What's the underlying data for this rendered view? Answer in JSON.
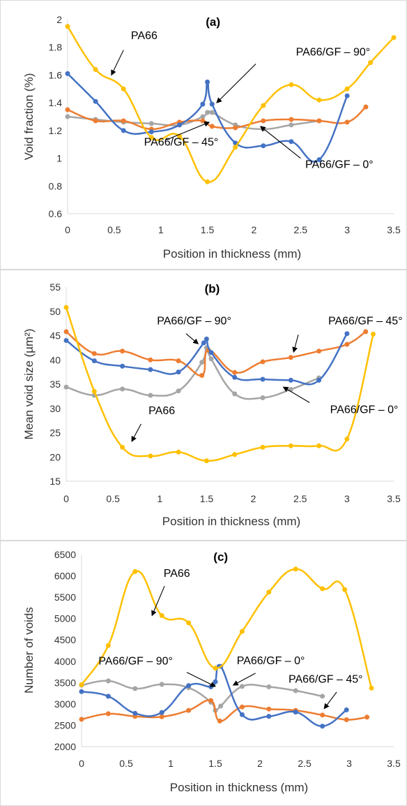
{
  "colors": {
    "PA66": "#ffc000",
    "PA66/GF – 90°": "#4472c4",
    "PA66/GF – 45°": "#ed7d31",
    "PA66/GF – 0°": "#a5a5a5"
  },
  "chart_data": [
    {
      "type": "line",
      "panel_label": "(a)",
      "xlabel": "Position in thickness (mm)",
      "ylabel": "Void fraction (%)",
      "xlim": [
        0,
        3.5
      ],
      "ylim": [
        0.6,
        2
      ],
      "xticks": [
        0,
        0.5,
        1,
        1.5,
        2,
        2.5,
        3,
        3.5
      ],
      "yticks": [
        0.6,
        0.8,
        1,
        1.2,
        1.4,
        1.6,
        1.8,
        2
      ],
      "xtick_labels": [
        "0",
        "0.5",
        "1",
        "1.5",
        "2",
        "2.5",
        "3",
        "3.5"
      ],
      "ytick_labels": [
        "0.6",
        "0.8",
        "1",
        "1.2",
        "1.4",
        "1.6",
        "1.8",
        "2"
      ],
      "grid": false,
      "series": [
        {
          "key": "PA66",
          "x": [
            0,
            0.3,
            0.6,
            0.9,
            1.2,
            1.5,
            1.8,
            2.1,
            2.4,
            2.7,
            3.0,
            3.25,
            3.5
          ],
          "y": [
            1.95,
            1.64,
            1.5,
            1.15,
            1.16,
            0.83,
            1.08,
            1.38,
            1.53,
            1.42,
            1.5,
            1.69,
            1.87
          ]
        },
        {
          "key": "PA66/GF – 90°",
          "x": [
            0,
            0.3,
            0.6,
            0.9,
            1.2,
            1.45,
            1.5,
            1.55,
            1.8,
            2.1,
            2.4,
            2.7,
            3.0
          ],
          "y": [
            1.61,
            1.41,
            1.2,
            1.19,
            1.24,
            1.39,
            1.55,
            1.39,
            1.11,
            1.09,
            1.12,
            0.99,
            1.45
          ]
        },
        {
          "key": "PA66/GF – 45°",
          "x": [
            0,
            0.3,
            0.6,
            0.9,
            1.2,
            1.45,
            1.55,
            1.8,
            2.1,
            2.4,
            2.7,
            3.0,
            3.2
          ],
          "y": [
            1.35,
            1.27,
            1.27,
            1.21,
            1.26,
            1.27,
            1.23,
            1.22,
            1.27,
            1.28,
            1.27,
            1.26,
            1.37
          ]
        },
        {
          "key": "PA66/GF – 0°",
          "x": [
            0,
            0.3,
            0.6,
            0.9,
            1.2,
            1.45,
            1.5,
            1.55,
            1.8,
            2.1,
            2.4,
            2.7
          ],
          "y": [
            1.3,
            1.28,
            1.26,
            1.25,
            1.24,
            1.3,
            1.33,
            1.33,
            1.24,
            1.21,
            1.24,
            1.27
          ]
        }
      ],
      "annotations": [
        {
          "text": "PA66",
          "tx": 0.68,
          "ty": 1.86,
          "ax1": 0.6,
          "ay1": 1.78,
          "ax2": 0.47,
          "ay2": 1.6
        },
        {
          "text": "PA66/GF – 90°",
          "tx": 2.45,
          "ty": 1.74,
          "ax1": 2.02,
          "ay1": 1.68,
          "ax2": 1.6,
          "ay2": 1.4
        },
        {
          "text": "PA66/GF – 45°",
          "tx": 0.82,
          "ty": 1.09,
          "ax1": 1.05,
          "ay1": 1.13,
          "ax2": 1.52,
          "ay2": 1.26
        },
        {
          "text": "PA66/GF – 0°",
          "tx": 2.55,
          "ty": 0.93,
          "ax1": 2.5,
          "ay1": 1.0,
          "ax2": 2.07,
          "ay2": 1.23
        }
      ]
    },
    {
      "type": "line",
      "panel_label": "(b)",
      "xlabel": "Position in thickness (mm)",
      "ylabel": "Mean void size (µm²)",
      "xlim": [
        0,
        3.5
      ],
      "ylim": [
        15,
        55
      ],
      "xticks": [
        0,
        0.5,
        1,
        1.5,
        2,
        2.5,
        3,
        3.5
      ],
      "yticks": [
        15,
        20,
        25,
        30,
        35,
        40,
        45,
        50,
        55
      ],
      "xtick_labels": [
        "0",
        "0.5",
        "1",
        "1.5",
        "2",
        "2.5",
        "3",
        "3.5"
      ],
      "ytick_labels": [
        "15",
        "20",
        "25",
        "30",
        "35",
        "40",
        "45",
        "50",
        "55"
      ],
      "grid": false,
      "series": [
        {
          "key": "PA66",
          "x": [
            0,
            0.3,
            0.6,
            0.9,
            1.2,
            1.5,
            1.8,
            2.1,
            2.4,
            2.7,
            3.0,
            3.28
          ],
          "y": [
            50.8,
            33.5,
            22.0,
            20.2,
            21.0,
            19.2,
            20.5,
            22.0,
            22.3,
            22.3,
            23.7,
            45.3
          ]
        },
        {
          "key": "PA66/GF – 90°",
          "x": [
            0,
            0.3,
            0.6,
            0.9,
            1.2,
            1.47,
            1.5,
            1.55,
            1.8,
            2.1,
            2.4,
            2.7,
            3.0
          ],
          "y": [
            44.0,
            39.8,
            38.7,
            38.0,
            37.5,
            43.5,
            44.3,
            41.5,
            36.4,
            36.0,
            35.8,
            35.8,
            45.4
          ]
        },
        {
          "key": "PA66/GF – 45°",
          "x": [
            0,
            0.3,
            0.6,
            0.9,
            1.2,
            1.45,
            1.52,
            1.8,
            2.1,
            2.4,
            2.7,
            3.0,
            3.2
          ],
          "y": [
            45.8,
            41.3,
            41.8,
            40.0,
            39.8,
            36.8,
            42.0,
            37.4,
            39.6,
            40.5,
            41.8,
            43.2,
            45.8
          ]
        },
        {
          "key": "PA66/GF – 0°",
          "x": [
            0,
            0.3,
            0.6,
            0.9,
            1.2,
            1.45,
            1.5,
            1.55,
            1.8,
            2.1,
            2.4,
            2.7
          ],
          "y": [
            34.4,
            32.7,
            34.0,
            32.7,
            33.6,
            39.5,
            42.5,
            40.2,
            33.0,
            32.2,
            33.9,
            36.3
          ]
        }
      ],
      "annotations": [
        {
          "text": "PA66/GF – 90°",
          "tx": 0.97,
          "ty": 47.3,
          "ax1": 1.28,
          "ay1": 45.4,
          "ax2": 1.41,
          "ay2": 43.3
        },
        {
          "text": "PA66/GF – 45°",
          "tx": 2.8,
          "ty": 47.3,
          "ax1": 2.48,
          "ay1": 45.2,
          "ax2": 2.43,
          "ay2": 41.6
        },
        {
          "text": "PA66",
          "tx": 0.88,
          "ty": 28.8,
          "ax1": 0.8,
          "ay1": 26.8,
          "ax2": 0.7,
          "ay2": 23.2
        },
        {
          "text": "PA66/GF – 0°",
          "tx": 2.82,
          "ty": 29.0,
          "ax1": 2.6,
          "ay1": 31.2,
          "ax2": 2.32,
          "ay2": 34.4
        }
      ]
    },
    {
      "type": "line",
      "panel_label": "(c)",
      "xlabel": "Position in thickness (mm)",
      "ylabel": "Number of voids",
      "xlim": [
        0,
        3.5
      ],
      "ylim": [
        2000,
        6500
      ],
      "xticks": [
        0,
        0.5,
        1,
        1.5,
        2,
        2.5,
        3,
        3.5
      ],
      "yticks": [
        2000,
        2500,
        3000,
        3500,
        4000,
        4500,
        5000,
        5500,
        6000,
        6500
      ],
      "xtick_labels": [
        "0",
        "0.5",
        "1",
        "1.5",
        "2",
        "2.5",
        "3",
        "3.5"
      ],
      "ytick_labels": [
        "2000",
        "2500",
        "3000",
        "3500",
        "4000",
        "4500",
        "5000",
        "5500",
        "6000",
        "6500"
      ],
      "grid": false,
      "series": [
        {
          "key": "PA66",
          "x": [
            0,
            0.3,
            0.6,
            0.9,
            1.2,
            1.5,
            1.8,
            2.1,
            2.4,
            2.7,
            2.95,
            3.25
          ],
          "y": [
            3450,
            4370,
            6100,
            5070,
            4900,
            3840,
            4700,
            5620,
            6160,
            5700,
            5680,
            3370
          ]
        },
        {
          "key": "PA66/GF – 90°",
          "x": [
            0,
            0.3,
            0.6,
            0.9,
            1.2,
            1.45,
            1.5,
            1.56,
            1.8,
            2.1,
            2.4,
            2.7,
            2.97
          ],
          "y": [
            3290,
            3180,
            2780,
            2800,
            3430,
            3400,
            3520,
            3880,
            2750,
            2710,
            2810,
            2480,
            2860
          ]
        },
        {
          "key": "PA66/GF – 45°",
          "x": [
            0,
            0.3,
            0.6,
            0.9,
            1.2,
            1.45,
            1.55,
            1.8,
            2.1,
            2.4,
            2.7,
            2.97,
            3.2
          ],
          "y": [
            2640,
            2770,
            2710,
            2700,
            2850,
            3080,
            2600,
            2930,
            2880,
            2850,
            2740,
            2630,
            2690
          ]
        },
        {
          "key": "PA66/GF – 0°",
          "x": [
            0,
            0.3,
            0.6,
            0.9,
            1.2,
            1.45,
            1.5,
            1.56,
            1.8,
            2.1,
            2.4,
            2.7
          ],
          "y": [
            3440,
            3540,
            3360,
            3460,
            3380,
            3040,
            2850,
            2950,
            3410,
            3400,
            3310,
            3180
          ]
        }
      ],
      "annotations": [
        {
          "text": "PA66",
          "tx": 0.92,
          "ty": 5980,
          "ax1": 0.93,
          "ay1": 5760,
          "ax2": 0.79,
          "ay2": 5070
        },
        {
          "text": "PA66/GF – 90°",
          "tx": 0.19,
          "ty": 3920,
          "ax1": 1.18,
          "ay1": 3740,
          "ax2": 1.5,
          "ay2": 3410
        },
        {
          "text": "PA66/GF – 0°",
          "tx": 1.74,
          "ty": 3930,
          "ax1": 1.95,
          "ay1": 3720,
          "ax2": 1.7,
          "ay2": 3440
        },
        {
          "text": "PA66/GF – 45°",
          "tx": 2.32,
          "ty": 3500,
          "ax1": 2.86,
          "ay1": 3280,
          "ax2": 2.72,
          "ay2": 2890
        }
      ]
    }
  ]
}
